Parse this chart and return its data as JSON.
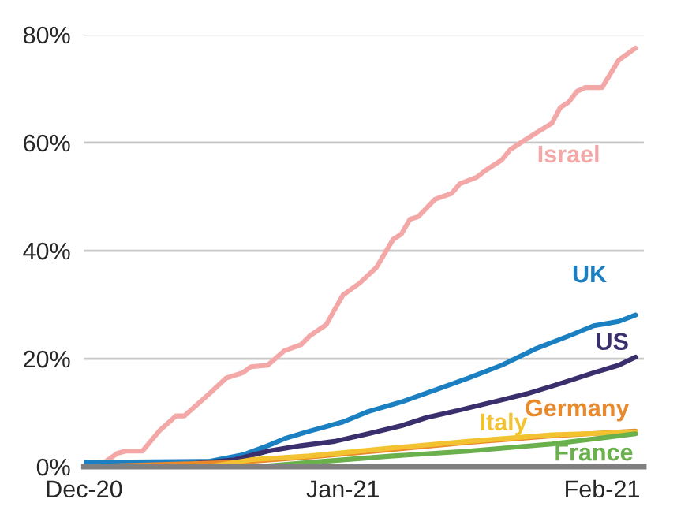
{
  "chart_data": {
    "type": "line",
    "xlim": [
      "2020-12-01",
      "2021-02-06"
    ],
    "xticks": [
      {
        "value": "2020-12-01",
        "label": "Dec-20"
      },
      {
        "value": "2021-01-01",
        "label": "Jan-21"
      },
      {
        "value": "2021-02-01",
        "label": "Feb-21"
      }
    ],
    "ylim": [
      0,
      80
    ],
    "yticks": [
      {
        "value": 0,
        "label": "0%"
      },
      {
        "value": 20,
        "label": "20%"
      },
      {
        "value": 40,
        "label": "40%"
      },
      {
        "value": 60,
        "label": "60%"
      },
      {
        "value": 80,
        "label": "80%"
      }
    ],
    "grid": "y",
    "legend": false,
    "series": [
      {
        "name": "Israel",
        "color": "#f4a7a7",
        "x": [
          "2020-12-01",
          "2020-12-03",
          "2020-12-05",
          "2020-12-06",
          "2020-12-08",
          "2020-12-10",
          "2020-12-12",
          "2020-12-13",
          "2020-12-16",
          "2020-12-18",
          "2020-12-20",
          "2020-12-21",
          "2020-12-23",
          "2020-12-25",
          "2020-12-27",
          "2020-12-28",
          "2020-12-30",
          "2020-12-31",
          "2021-01-01",
          "2021-01-03",
          "2021-01-05",
          "2021-01-07",
          "2021-01-08",
          "2021-01-09",
          "2021-01-10",
          "2021-01-12",
          "2021-01-14",
          "2021-01-15",
          "2021-01-17",
          "2021-01-18",
          "2021-01-20",
          "2021-01-21",
          "2021-01-23",
          "2021-01-24",
          "2021-01-26",
          "2021-01-27",
          "2021-01-28",
          "2021-01-29",
          "2021-01-30",
          "2021-02-01",
          "2021-02-03",
          "2021-02-05"
        ],
        "values": [
          0.3,
          0.3,
          2.5,
          2.9,
          2.9,
          6.6,
          9.4,
          9.4,
          13.5,
          16.4,
          17.4,
          18.5,
          18.8,
          21.5,
          22.6,
          24.2,
          26.3,
          29.1,
          31.8,
          34,
          36.9,
          42.1,
          43.1,
          45.8,
          46.3,
          49.5,
          50.6,
          52.4,
          53.6,
          54.8,
          56.8,
          58.7,
          60.7,
          61.7,
          63.6,
          66.5,
          67.5,
          69.5,
          70.2,
          70.2,
          75.3,
          77.5
        ]
      },
      {
        "name": "UK",
        "color": "#1a80c2",
        "x": [
          "2020-12-01",
          "2020-12-16",
          "2020-12-20",
          "2020-12-23",
          "2020-12-25",
          "2020-12-28",
          "2021-01-01",
          "2021-01-04",
          "2021-01-08",
          "2021-01-12",
          "2021-01-16",
          "2021-01-20",
          "2021-01-24",
          "2021-01-28",
          "2021-01-31",
          "2021-02-03",
          "2021-02-05"
        ],
        "values": [
          0.8,
          1.0,
          2.2,
          3.9,
          5.2,
          6.6,
          8.3,
          10.2,
          12.0,
          14.2,
          16.4,
          18.8,
          21.8,
          24.2,
          26.1,
          26.9,
          28.1
        ]
      },
      {
        "name": "US",
        "color": "#3b2e6c",
        "x": [
          "2020-12-01",
          "2020-12-13",
          "2020-12-19",
          "2020-12-23",
          "2020-12-27",
          "2020-12-31",
          "2021-01-04",
          "2021-01-08",
          "2021-01-11",
          "2021-01-15",
          "2021-01-19",
          "2021-01-23",
          "2021-01-27",
          "2021-01-31",
          "2021-02-03",
          "2021-02-05"
        ],
        "values": [
          0,
          0.4,
          1.3,
          2.9,
          3.9,
          4.7,
          6.1,
          7.6,
          9.1,
          10.5,
          12.0,
          13.5,
          15.4,
          17.4,
          18.8,
          20.3
        ]
      },
      {
        "name": "Germany",
        "color": "#e8892b",
        "x": [
          "2020-12-01",
          "2020-12-19",
          "2020-12-28",
          "2021-01-07",
          "2021-01-16",
          "2021-01-26",
          "2021-02-05"
        ],
        "values": [
          0,
          0.8,
          1.8,
          3.2,
          4.5,
          5.7,
          6.6
        ]
      },
      {
        "name": "Italy",
        "color": "#f2c230",
        "x": [
          "2020-12-01",
          "2020-12-16",
          "2020-12-21",
          "2020-12-28",
          "2021-01-07",
          "2021-01-16",
          "2021-01-26",
          "2021-02-05"
        ],
        "values": [
          0,
          0,
          1.3,
          2.0,
          3.5,
          4.7,
          5.9,
          6.4
        ]
      },
      {
        "name": "France",
        "color": "#6ab04c",
        "x": [
          "2020-12-01",
          "2020-12-22",
          "2020-12-28",
          "2021-01-07",
          "2021-01-16",
          "2021-01-26",
          "2021-02-05"
        ],
        "values": [
          0,
          0,
          0.8,
          2.0,
          2.9,
          4.2,
          6.1
        ]
      }
    ]
  }
}
